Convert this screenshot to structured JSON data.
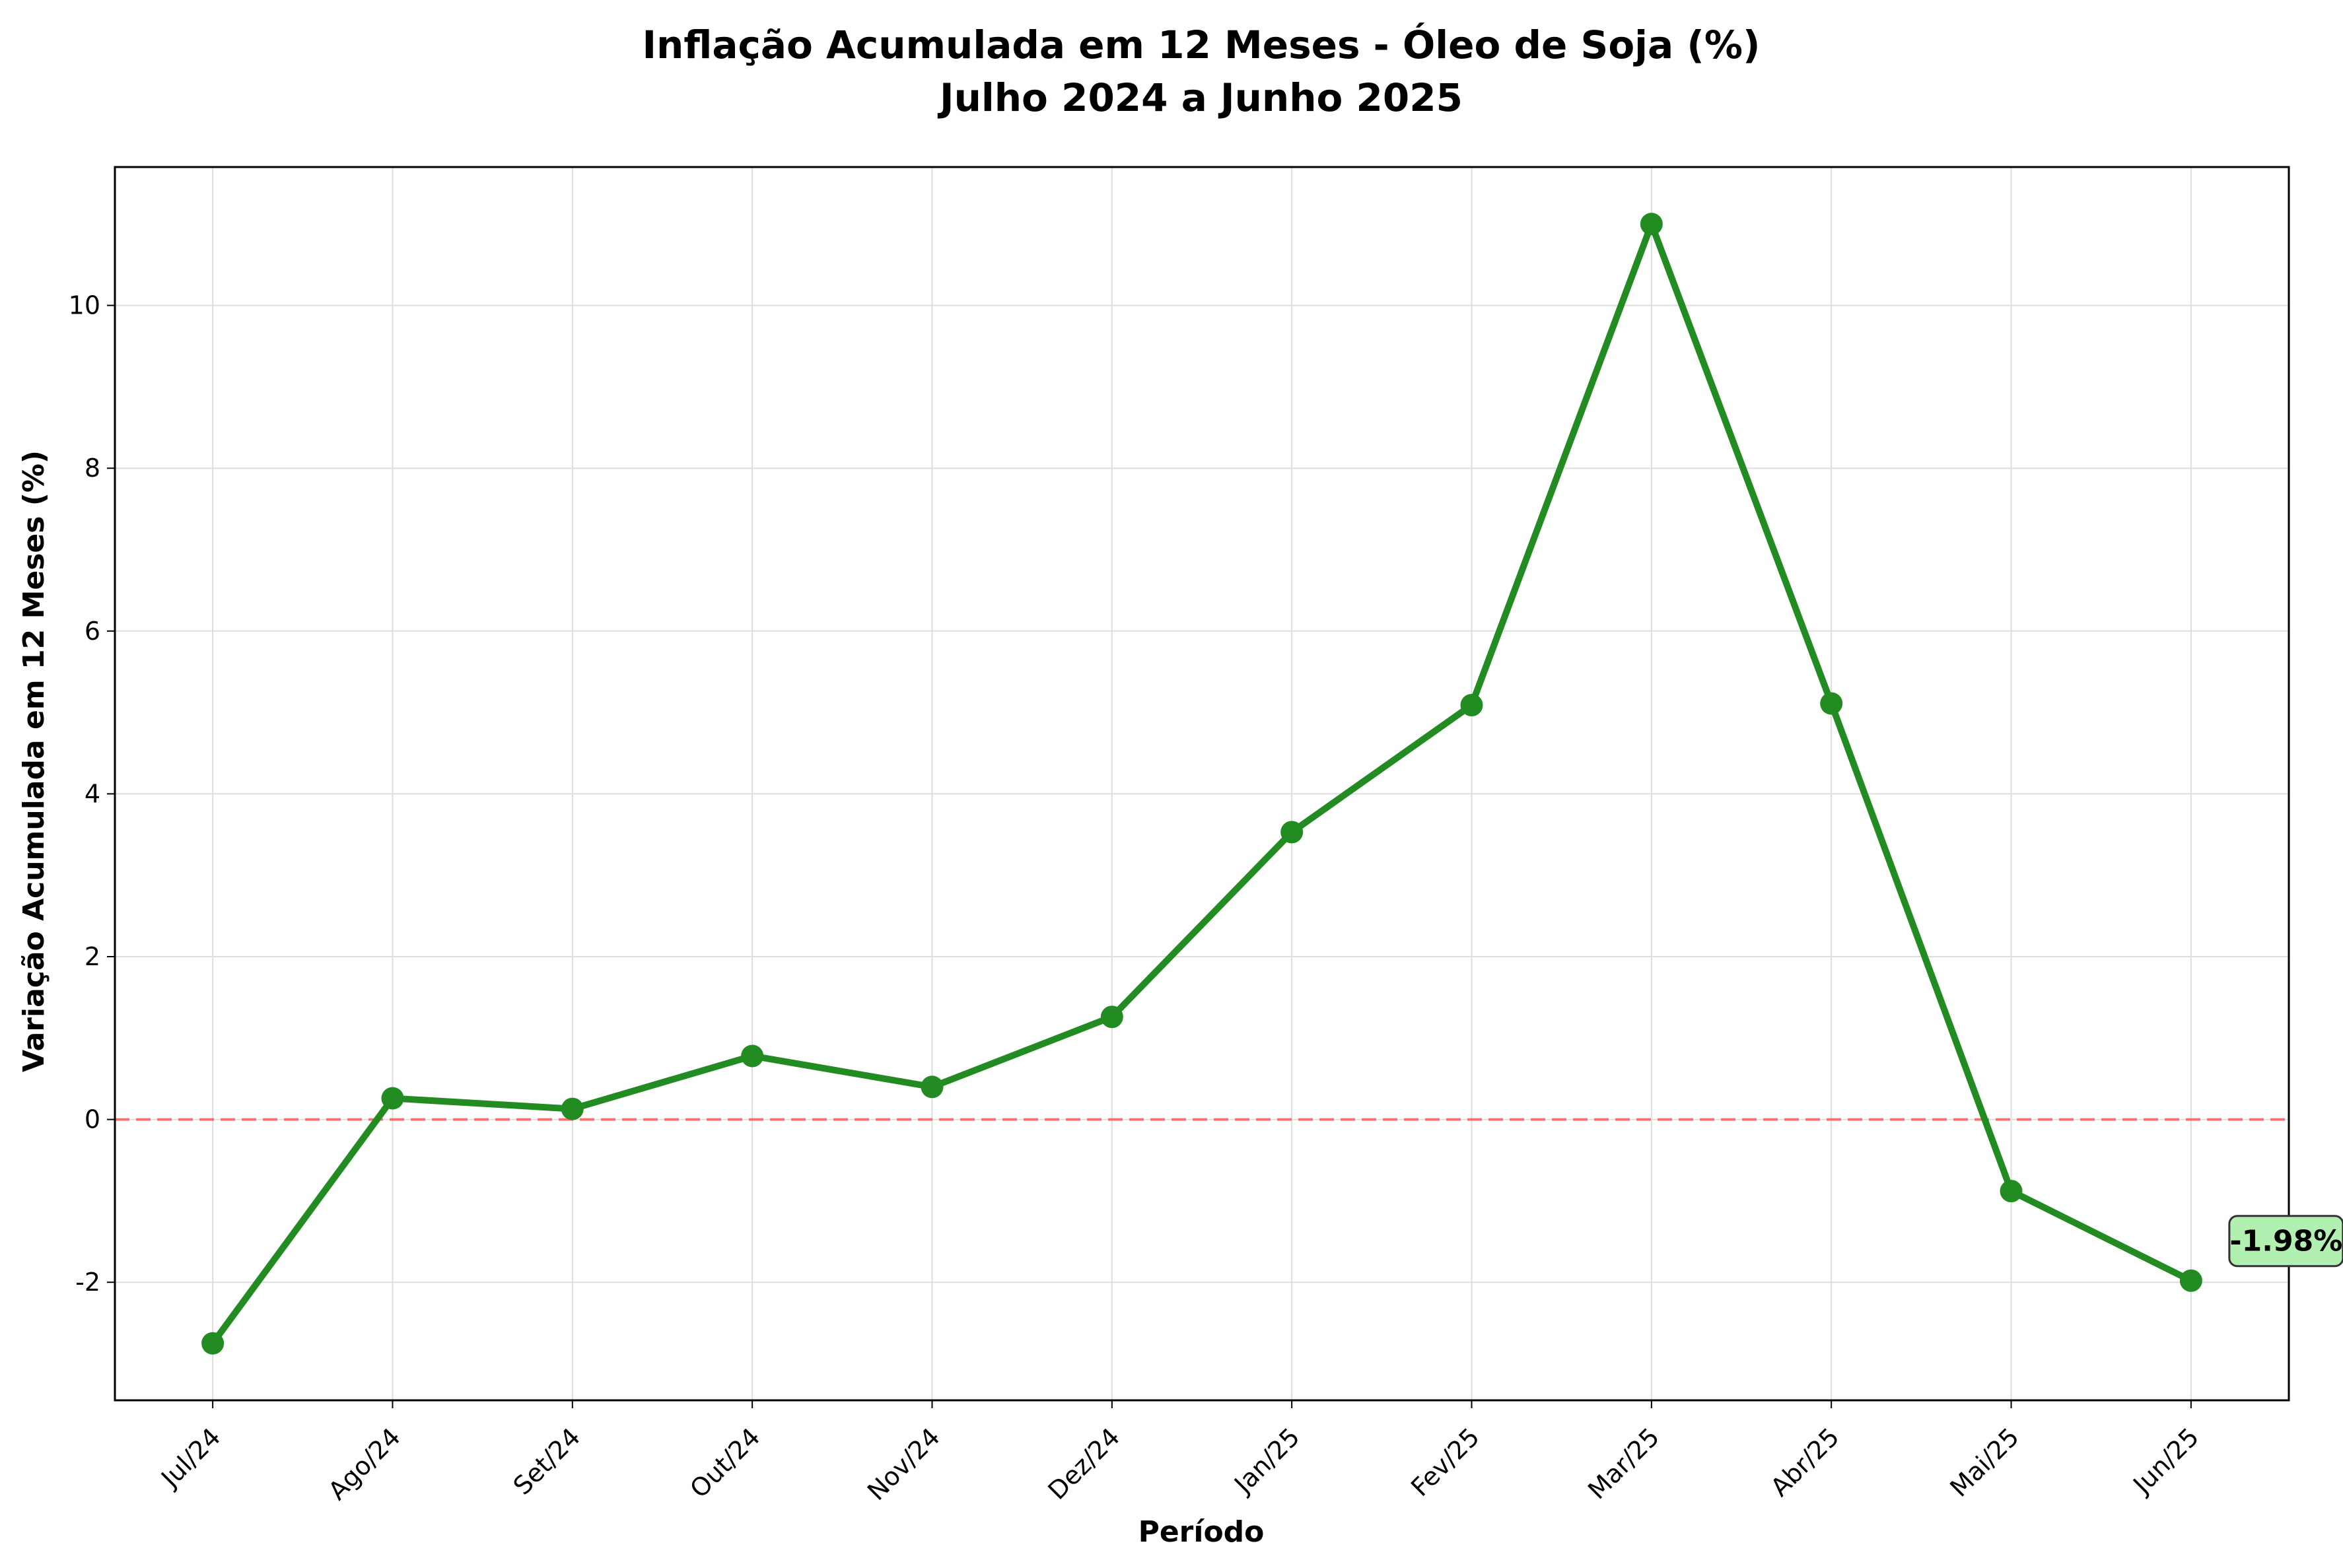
{
  "chart_data": {
    "type": "line",
    "title": "Inflação Acumulada em 12 Meses - Óleo de Soja (%)",
    "subtitle": "Julho 2024 a Junho 2025",
    "xlabel": "Período",
    "ylabel": "Variação Acumulada em 12 Meses (%)",
    "categories": [
      "Jul/24",
      "Ago/24",
      "Set/24",
      "Out/24",
      "Nov/24",
      "Dez/24",
      "Jan/25",
      "Fev/25",
      "Mar/25",
      "Abr/25",
      "Mai/25",
      "Jun/25"
    ],
    "series": [
      {
        "values": [
          -2.75,
          0.26,
          0.13,
          0.78,
          0.4,
          1.26,
          3.53,
          5.09,
          11.0,
          5.11,
          -0.88,
          -1.98
        ],
        "color": "#228b22"
      }
    ],
    "ylim": [
      -3.45,
      11.7
    ],
    "yticks": [
      -2,
      0,
      2,
      4,
      6,
      8,
      10
    ],
    "ytick_labels": [
      "-2",
      "0",
      "2",
      "4",
      "6",
      "8",
      "10"
    ],
    "grid": true,
    "reference_line": {
      "y": 0,
      "color": "#ff0000",
      "style": "dashed"
    },
    "annotation": {
      "label": "-1.98%",
      "point_index": 11,
      "background": "#b2f0b2"
    }
  }
}
